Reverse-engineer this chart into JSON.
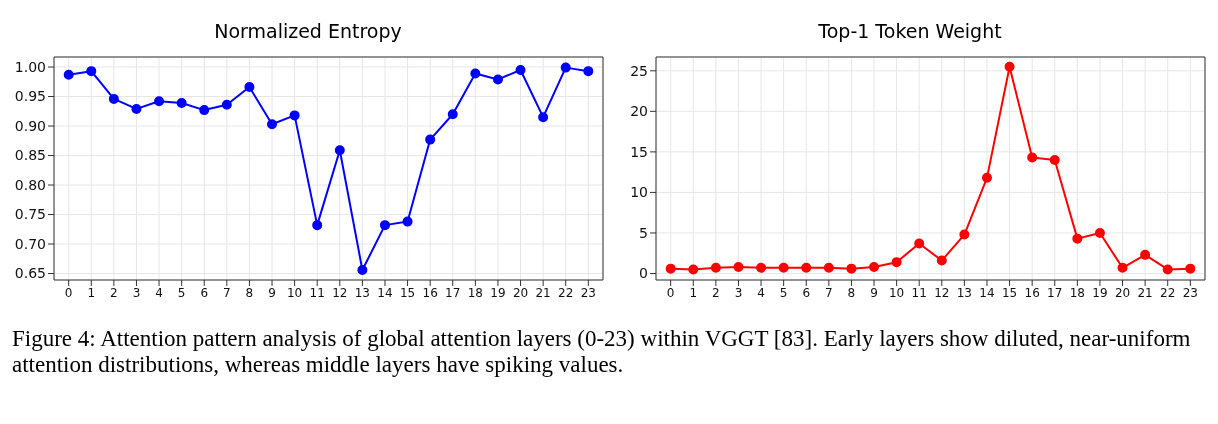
{
  "chart_data": [
    {
      "type": "line",
      "title": "Normalized Entropy",
      "x": [
        0,
        1,
        2,
        3,
        4,
        5,
        6,
        7,
        8,
        9,
        10,
        11,
        12,
        13,
        14,
        15,
        16,
        17,
        18,
        19,
        20,
        21,
        22,
        23
      ],
      "xlim": [
        -0.65,
        23.65
      ],
      "xticks": [
        0,
        1,
        2,
        3,
        4,
        5,
        6,
        7,
        8,
        9,
        10,
        11,
        12,
        13,
        14,
        15,
        16,
        17,
        18,
        19,
        20,
        21,
        22,
        23
      ],
      "series": [
        {
          "color": "#0000ff",
          "values": [
            0.987,
            0.993,
            0.946,
            0.929,
            0.942,
            0.939,
            0.927,
            0.936,
            0.966,
            0.903,
            0.918,
            0.732,
            0.859,
            0.656,
            0.732,
            0.738,
            0.877,
            0.92,
            0.989,
            0.979,
            0.995,
            0.915,
            0.999,
            0.993
          ]
        }
      ],
      "ylim": [
        0.639,
        1.017
      ],
      "yticks": [
        {
          "value": 0.65,
          "label": "0.65"
        },
        {
          "value": 0.7,
          "label": "0.70"
        },
        {
          "value": 0.75,
          "label": "0.75"
        },
        {
          "value": 0.8,
          "label": "0.80"
        },
        {
          "value": 0.85,
          "label": "0.85"
        },
        {
          "value": 0.9,
          "label": "0.90"
        },
        {
          "value": 0.95,
          "label": "0.95"
        },
        {
          "value": 1.0,
          "label": "1.00"
        }
      ],
      "grid": true,
      "marker": "circle",
      "line_style": "solid",
      "annotations": [
        "Figure 4: Attention pattern analysis of global attention layers (0-23) within VGGT [83]. Early layers show diluted, near-uniform attention distributions, whereas middle layers have spiking values."
      ]
    },
    {
      "type": "line",
      "title": "Top-1 Token Weight",
      "x": [
        0,
        1,
        2,
        3,
        4,
        5,
        6,
        7,
        8,
        9,
        10,
        11,
        12,
        13,
        14,
        15,
        16,
        17,
        18,
        19,
        20,
        21,
        22,
        23
      ],
      "xlim": [
        -0.65,
        23.65
      ],
      "xticks": [
        0,
        1,
        2,
        3,
        4,
        5,
        6,
        7,
        8,
        9,
        10,
        11,
        12,
        13,
        14,
        15,
        16,
        17,
        18,
        19,
        20,
        21,
        22,
        23
      ],
      "series": [
        {
          "color": "#ff0000",
          "values": [
            0.6,
            0.5,
            0.7,
            0.8,
            0.7,
            0.7,
            0.7,
            0.7,
            0.6,
            0.8,
            1.4,
            3.7,
            1.6,
            4.8,
            11.8,
            25.5,
            14.3,
            14.0,
            4.3,
            5.0,
            0.7,
            2.3,
            0.5,
            0.6
          ]
        }
      ],
      "ylim": [
        -0.8,
        26.7
      ],
      "yticks": [
        0,
        5,
        10,
        15,
        20,
        25
      ],
      "grid": true,
      "marker": "circle",
      "line_style": "solid"
    }
  ]
}
